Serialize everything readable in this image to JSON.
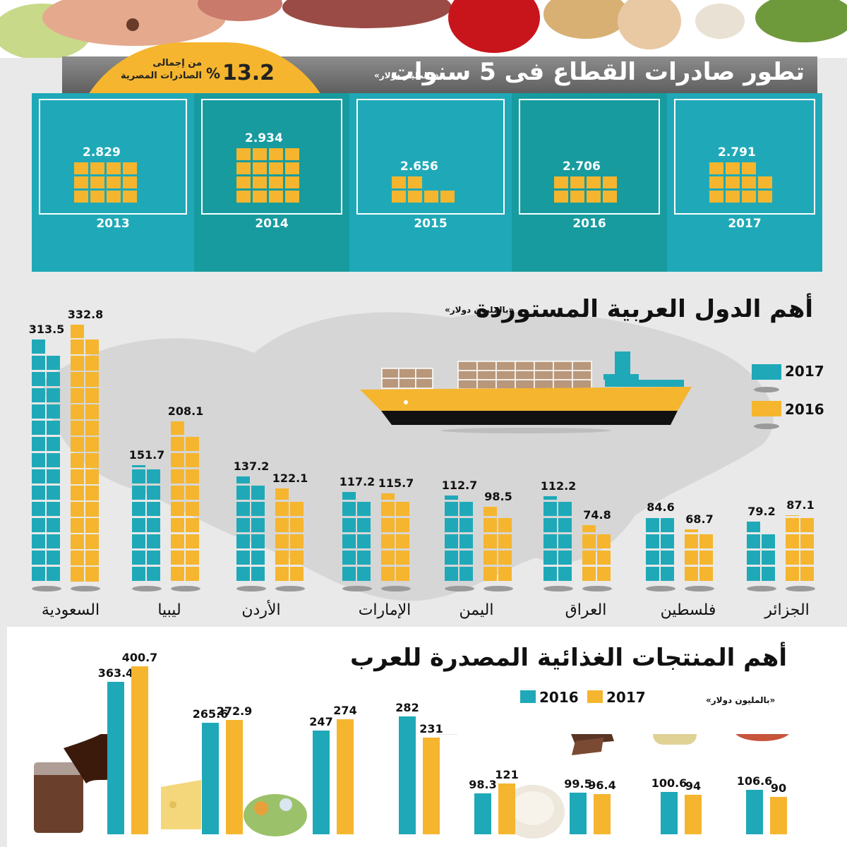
{
  "colors": {
    "teal": "#1fa9b8",
    "yellow": "#f5b52e",
    "dark_teal": "#179b9f",
    "grey_bar": "#6f6f6f"
  },
  "exports": {
    "title": "تطور صادرات القطاع فى 5 سنوات",
    "unit": "«بالمليار دولار»",
    "share_value": "13.2",
    "share_pct": "%",
    "share_label_1": "من إجمالى",
    "share_label_2": "الصادرات المصرية",
    "years": [
      {
        "year": "2013",
        "value": "2.829"
      },
      {
        "year": "2014",
        "value": "2.934"
      },
      {
        "year": "2015",
        "value": "2.656"
      },
      {
        "year": "2016",
        "value": "2.706"
      },
      {
        "year": "2017",
        "value": "2.791"
      }
    ]
  },
  "importers": {
    "title": "أهم الدول العربية المستوردة",
    "unit": "«بالمليون دولار»",
    "legend": [
      {
        "label": "2017",
        "icon": "teal-square"
      },
      {
        "label": "2016",
        "icon": "yellow-square"
      }
    ]
  },
  "products": {
    "title": "أهم المنتجات الغذائية المصدرة للعرب",
    "unit": "«بالمليون دولار»",
    "legend": [
      {
        "label": "2016",
        "icon": "teal-square"
      },
      {
        "label": "2017",
        "icon": "yellow-square"
      }
    ]
  },
  "chart_data": [
    {
      "type": "bar",
      "title": "تطور صادرات القطاع فى 5 سنوات",
      "ylabel": "«بالمليار دولار»",
      "categories": [
        "2013",
        "2014",
        "2015",
        "2016",
        "2017"
      ],
      "values": [
        2.829,
        2.934,
        2.656,
        2.706,
        2.791
      ]
    },
    {
      "type": "bar",
      "title": "أهم الدول العربية المستوردة",
      "ylabel": "«بالمليون دولار»",
      "categories": [
        "السعودية",
        "ليبيا",
        "الأردن",
        "الإمارات",
        "اليمن",
        "العراق",
        "فلسطين",
        "الجزائر"
      ],
      "series": [
        {
          "name": "2017",
          "values": [
            313.5,
            151.7,
            137.2,
            117.2,
            112.7,
            112.2,
            84.6,
            79.2
          ],
          "labels": [
            "313.5",
            "151.7",
            "137.2",
            "117.2",
            "112.7",
            "112.2",
            "84.6",
            "79.2"
          ]
        },
        {
          "name": "2016",
          "values": [
            332.8,
            208.1,
            122.1,
            115.7,
            98.5,
            74.8,
            68.7,
            87.1
          ],
          "labels": [
            "332.8",
            "208.1",
            "122.1",
            "115.7",
            "98.5",
            "74.8",
            "68.7",
            "87.1"
          ]
        }
      ]
    },
    {
      "type": "bar",
      "title": "أهم المنتجات الغذائية المصدرة للعرب",
      "ylabel": "«بالمليون دولار»",
      "categories": [
        "",
        "",
        "",
        "",
        "",
        "",
        "",
        ""
      ],
      "series": [
        {
          "name": "2016",
          "values": [
            363.4,
            265.6,
            247,
            282,
            98.3,
            99.5,
            100.6,
            106.6
          ],
          "labels": [
            "363.4",
            "265.6",
            "247",
            "282",
            "98.3",
            "99.5",
            "100.6",
            "106.6"
          ]
        },
        {
          "name": "2017",
          "values": [
            400.7,
            272.9,
            274,
            231,
            121,
            96.4,
            94,
            90
          ],
          "labels": [
            "400.7",
            "272.9",
            "274",
            "231",
            "121",
            "96.4",
            "94",
            "90"
          ]
        }
      ]
    }
  ]
}
